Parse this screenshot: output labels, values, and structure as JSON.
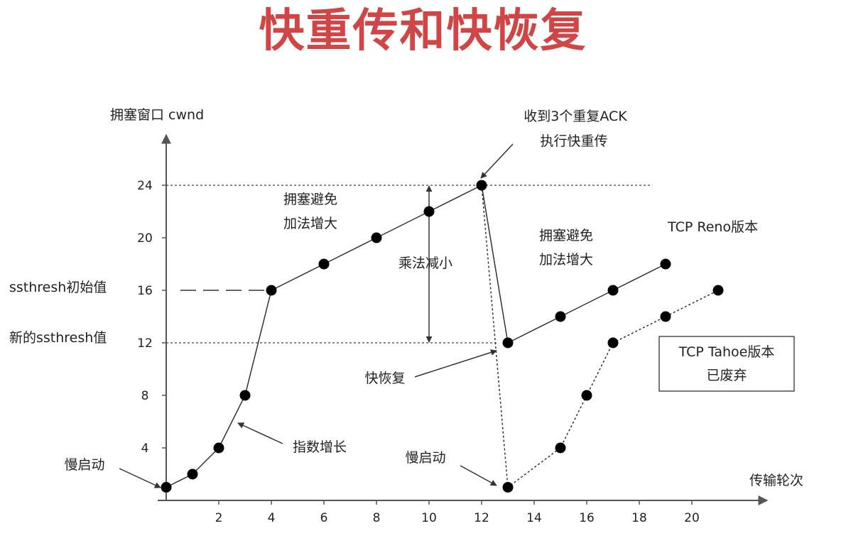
{
  "title": "快重传和快恢复",
  "chart_data": {
    "type": "line",
    "ylabel": "拥塞窗口 cwnd",
    "xlabel": "传输轮次",
    "xlim": [
      0,
      22.5
    ],
    "ylim": [
      0,
      27.5
    ],
    "x_ticks": [
      2,
      4,
      6,
      8,
      10,
      12,
      14,
      16,
      18,
      20
    ],
    "y_ticks": [
      4,
      8,
      12,
      16,
      20,
      24
    ],
    "series": [
      {
        "name": "TCP Reno版本",
        "style": "solid",
        "points": [
          [
            0,
            1
          ],
          [
            1,
            2
          ],
          [
            2,
            4
          ],
          [
            3,
            8
          ],
          [
            4,
            16
          ],
          [
            6,
            18
          ],
          [
            8,
            20
          ],
          [
            10,
            22
          ],
          [
            12,
            24
          ],
          [
            13,
            12
          ],
          [
            15,
            14
          ],
          [
            17,
            16
          ],
          [
            19,
            18
          ]
        ],
        "label_at": [
          20.8,
          20.5
        ]
      },
      {
        "name": "TCP Tahoe版本",
        "style": "dotted",
        "points": [
          [
            12,
            24
          ],
          [
            13,
            1
          ],
          [
            15,
            4
          ],
          [
            16,
            8
          ],
          [
            17,
            12
          ],
          [
            19,
            14
          ],
          [
            21,
            16
          ]
        ]
      }
    ],
    "reference_lines": {
      "ssthresh_init": {
        "label": "ssthresh初始值",
        "value": 16
      },
      "ssthresh_new": {
        "label": "新的ssthresh值",
        "value": 12
      },
      "peak": {
        "value": 24
      }
    },
    "annotations": {
      "triple_ack_1": "收到3个重复ACK",
      "triple_ack_2": "执行快重传",
      "ca_left_1": "拥塞避免",
      "ca_left_2": "加法增大",
      "md": "乘法减小",
      "ca_right_1": "拥塞避免",
      "ca_right_2": "加法增大",
      "fast_recovery": "快恢复",
      "exp_growth": "指数增长",
      "slow_start_left": "慢启动",
      "slow_start_right": "慢启动",
      "tahoe_box_1": "TCP Tahoe版本",
      "tahoe_box_2": "已废弃"
    }
  }
}
